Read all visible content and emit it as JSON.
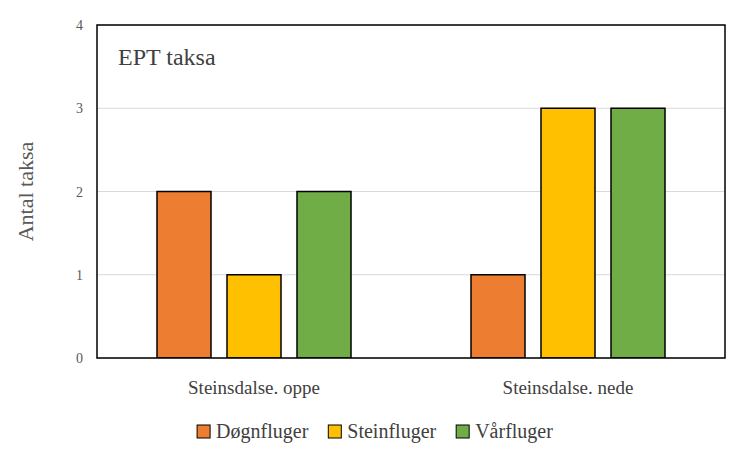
{
  "chart_data": {
    "type": "bar",
    "title": "EPT taksa",
    "y_label": "Antal taksa",
    "categories": [
      "Steinsdalse. oppe",
      "Steinsdalse. nede"
    ],
    "series": [
      {
        "name": "Døgnfluger",
        "color": "#ed7d31",
        "values": [
          2,
          1
        ]
      },
      {
        "name": "Steinfluger",
        "color": "#ffc000",
        "values": [
          1,
          3
        ]
      },
      {
        "name": "Vårfluger",
        "color": "#70ad47",
        "values": [
          2,
          3
        ]
      }
    ],
    "ylim": [
      0,
      4
    ],
    "yticks": [
      0,
      1,
      2,
      3,
      4
    ],
    "grid": true,
    "legend": "bottom"
  }
}
